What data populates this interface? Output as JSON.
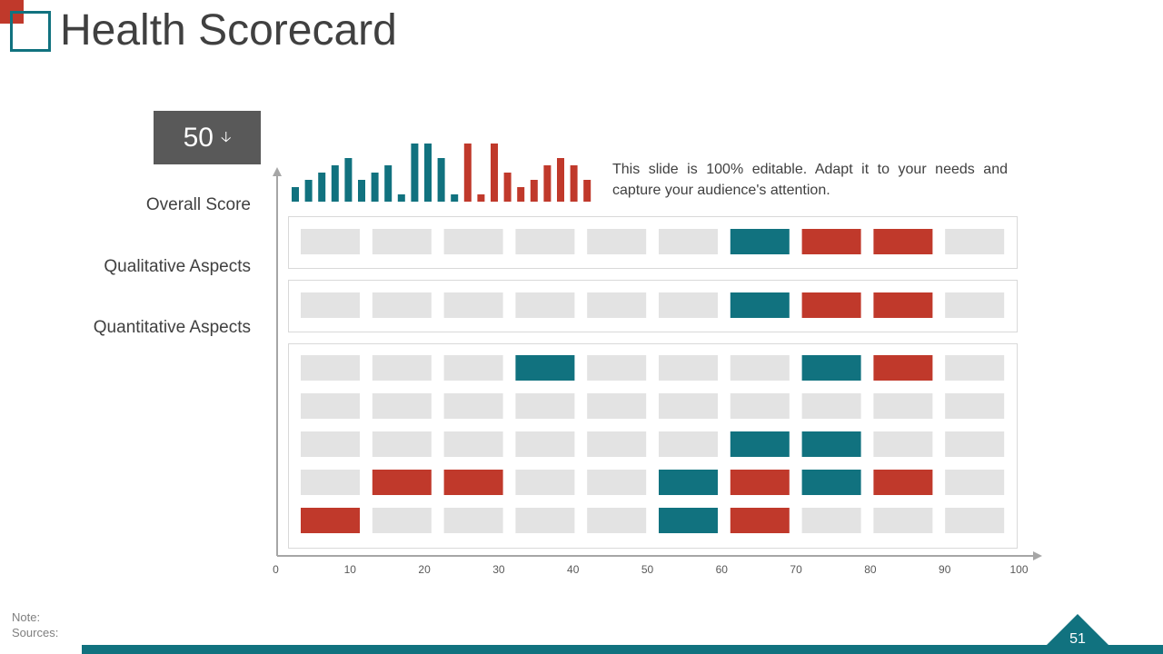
{
  "title": "Health Scorecard",
  "score": {
    "value": "50",
    "arrow": "🡣"
  },
  "description": "This slide is 100% editable. Adapt it to your needs and capture your audience's attention.",
  "labels": {
    "overall": "Overall Score",
    "qualitative": "Qualitative Aspects",
    "quantitative": "Quantitative Aspects"
  },
  "footer": {
    "note": "Note:",
    "sources": "Sources:",
    "page": "51"
  },
  "colors": {
    "teal": "#11727f",
    "red": "#c0392b",
    "empty": "#e3e3e3",
    "accent_dark": "#595959"
  },
  "chart_data": {
    "type": "heatmap",
    "x_axis": {
      "min": 0,
      "max": 100,
      "ticks": [
        0,
        10,
        20,
        30,
        40,
        50,
        60,
        70,
        80,
        90,
        100
      ]
    },
    "sparkline": {
      "type": "bar",
      "values": [
        2,
        3,
        4,
        5,
        6,
        3,
        4,
        5,
        1,
        8,
        8,
        6,
        1,
        8,
        1,
        8,
        4,
        2,
        3,
        5,
        6,
        5,
        3
      ],
      "colors": [
        "teal",
        "teal",
        "teal",
        "teal",
        "teal",
        "teal",
        "teal",
        "teal",
        "teal",
        "teal",
        "teal",
        "teal",
        "teal",
        "red",
        "red",
        "red",
        "red",
        "red",
        "red",
        "red",
        "red",
        "red",
        "red"
      ],
      "max": 8
    },
    "grid": [
      {
        "group": "Overall Score",
        "cells": [
          "",
          "",
          "",
          "",
          "",
          "",
          "teal",
          "red",
          "red",
          ""
        ]
      },
      {
        "group": "Qualitative Aspects",
        "cells": [
          "",
          "",
          "",
          "",
          "",
          "",
          "teal",
          "red",
          "red",
          ""
        ]
      },
      {
        "group": "Quantitative Aspects",
        "cells": [
          "",
          "",
          "",
          "teal",
          "",
          "",
          "",
          "teal",
          "red",
          ""
        ]
      },
      {
        "group": "Quantitative Aspects",
        "cells": [
          "",
          "",
          "",
          "",
          "",
          "",
          "",
          "",
          "",
          ""
        ]
      },
      {
        "group": "Quantitative Aspects",
        "cells": [
          "",
          "",
          "",
          "",
          "",
          "",
          "teal",
          "teal",
          "",
          ""
        ]
      },
      {
        "group": "Quantitative Aspects",
        "cells": [
          "",
          "red",
          "red",
          "",
          "",
          "teal",
          "red",
          "teal",
          "red",
          ""
        ]
      },
      {
        "group": "Quantitative Aspects",
        "cells": [
          "red",
          "",
          "",
          "",
          "",
          "teal",
          "red",
          "",
          "",
          ""
        ]
      }
    ]
  }
}
